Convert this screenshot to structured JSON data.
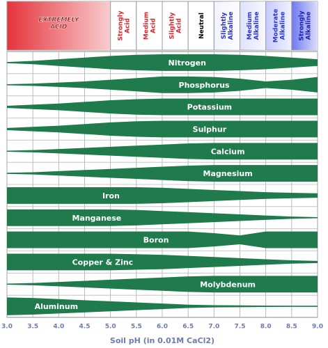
{
  "chart_data": {
    "type": "band",
    "x_label": "Soil pH (in 0.01M CaCl2)",
    "xlim": [
      3.0,
      9.0
    ],
    "xticks": [
      {
        "value": 3,
        "label": "3.0"
      },
      3.5,
      {
        "value": 4,
        "label": "4.0"
      },
      4.5,
      {
        "value": 5,
        "label": "5.0"
      },
      5.5,
      {
        "value": 6,
        "label": "6.0"
      },
      6.5,
      {
        "value": 7,
        "label": "7.0"
      },
      7.5,
      {
        "value": 8,
        "label": "8.0"
      },
      8.5,
      {
        "value": 9,
        "label": "9.0"
      }
    ],
    "grid": true,
    "zones": [
      {
        "label": "EXTREMELY ACID",
        "from": 3.0,
        "to": 5.0,
        "color": "#e5343c",
        "text_color": "#8a0a0a"
      },
      {
        "label": "Strongly Acid",
        "from": 5.0,
        "to": 5.5,
        "color": "#ffffff",
        "text_color": "#e5222c"
      },
      {
        "label": "Medium Acid",
        "from": 5.5,
        "to": 6.0,
        "color": "#ffffff",
        "text_color": "#e5222c"
      },
      {
        "label": "Slightly Acid",
        "from": 6.0,
        "to": 6.5,
        "color": "#ffffff",
        "text_color": "#e5222c"
      },
      {
        "label": "Neutral",
        "from": 6.5,
        "to": 7.0,
        "color": "#ffffff",
        "text_color": "#000000"
      },
      {
        "label": "Slightly Alkaline",
        "from": 7.0,
        "to": 7.5,
        "color": "#f2f3ff",
        "text_color": "#2a35d8"
      },
      {
        "label": "Medium Alkaline",
        "from": 7.5,
        "to": 8.0,
        "color": "#dfe2ff",
        "text_color": "#2a35d8"
      },
      {
        "label": "Moderate Alkaline",
        "from": 8.0,
        "to": 8.5,
        "color": "#c6cbff",
        "text_color": "#2a35d8"
      },
      {
        "label": "Strongly Alkaline",
        "from": 8.5,
        "to": 9.0,
        "color": "#6f78f0",
        "text_color": "#1a22b0"
      }
    ],
    "x": [
      3.0,
      3.5,
      4.0,
      4.5,
      5.0,
      5.5,
      6.0,
      6.5,
      7.0,
      7.5,
      8.0,
      8.5,
      9.0
    ],
    "series": [
      {
        "name": "Nitrogen",
        "color": "#1f7a4c",
        "values": [
          0.05,
          0.15,
          0.3,
          0.45,
          0.6,
          0.7,
          0.75,
          0.75,
          0.75,
          0.7,
          0.6,
          0.45,
          0.3
        ]
      },
      {
        "name": "Phosphorus",
        "color": "#1f7a4c",
        "values": [
          0.05,
          0.1,
          0.2,
          0.3,
          0.45,
          0.6,
          0.75,
          0.75,
          0.7,
          0.55,
          0.3,
          0.45,
          0.7
        ]
      },
      {
        "name": "Potassium",
        "color": "#1f7a4c",
        "values": [
          0.1,
          0.2,
          0.3,
          0.45,
          0.6,
          0.7,
          0.75,
          0.75,
          0.75,
          0.75,
          0.75,
          0.75,
          0.75
        ]
      },
      {
        "name": "Sulphur",
        "color": "#1f7a4c",
        "values": [
          0.1,
          0.2,
          0.3,
          0.45,
          0.6,
          0.7,
          0.75,
          0.75,
          0.75,
          0.75,
          0.75,
          0.75,
          0.75
        ]
      },
      {
        "name": "Calcium",
        "color": "#1f7a4c",
        "values": [
          0.05,
          0.1,
          0.2,
          0.3,
          0.4,
          0.5,
          0.6,
          0.7,
          0.75,
          0.75,
          0.75,
          0.75,
          0.75
        ]
      },
      {
        "name": "Magnesium",
        "color": "#1f7a4c",
        "values": [
          0.05,
          0.1,
          0.2,
          0.3,
          0.4,
          0.5,
          0.6,
          0.7,
          0.75,
          0.75,
          0.75,
          0.75,
          0.75
        ]
      },
      {
        "name": "Iron",
        "color": "#1f7a4c",
        "values": [
          0.75,
          0.75,
          0.75,
          0.75,
          0.75,
          0.75,
          0.7,
          0.6,
          0.5,
          0.4,
          0.3,
          0.25,
          0.2
        ]
      },
      {
        "name": "Manganese",
        "color": "#1f7a4c",
        "values": [
          0.75,
          0.75,
          0.75,
          0.75,
          0.75,
          0.7,
          0.6,
          0.5,
          0.4,
          0.3,
          0.2,
          0.1,
          0.05
        ]
      },
      {
        "name": "Boron",
        "color": "#1f7a4c",
        "values": [
          0.75,
          0.75,
          0.75,
          0.75,
          0.75,
          0.75,
          0.75,
          0.75,
          0.6,
          0.4,
          0.75,
          0.75,
          0.75
        ]
      },
      {
        "name": "Copper & Zinc",
        "color": "#1f7a4c",
        "values": [
          0.75,
          0.75,
          0.75,
          0.75,
          0.75,
          0.7,
          0.65,
          0.55,
          0.45,
          0.35,
          0.25,
          0.15,
          0.1
        ]
      },
      {
        "name": "Molybdenum",
        "color": "#1f7a4c",
        "values": [
          0.05,
          0.1,
          0.2,
          0.3,
          0.4,
          0.5,
          0.6,
          0.7,
          0.75,
          0.75,
          0.75,
          0.75,
          0.75
        ]
      },
      {
        "name": "Aluminum",
        "color": "#1f7a4c",
        "values": [
          0.8,
          0.75,
          0.65,
          0.55,
          0.45,
          0.35,
          0.25,
          0.15,
          0.1,
          0.08,
          0.06,
          0.05,
          0.05
        ]
      }
    ]
  }
}
